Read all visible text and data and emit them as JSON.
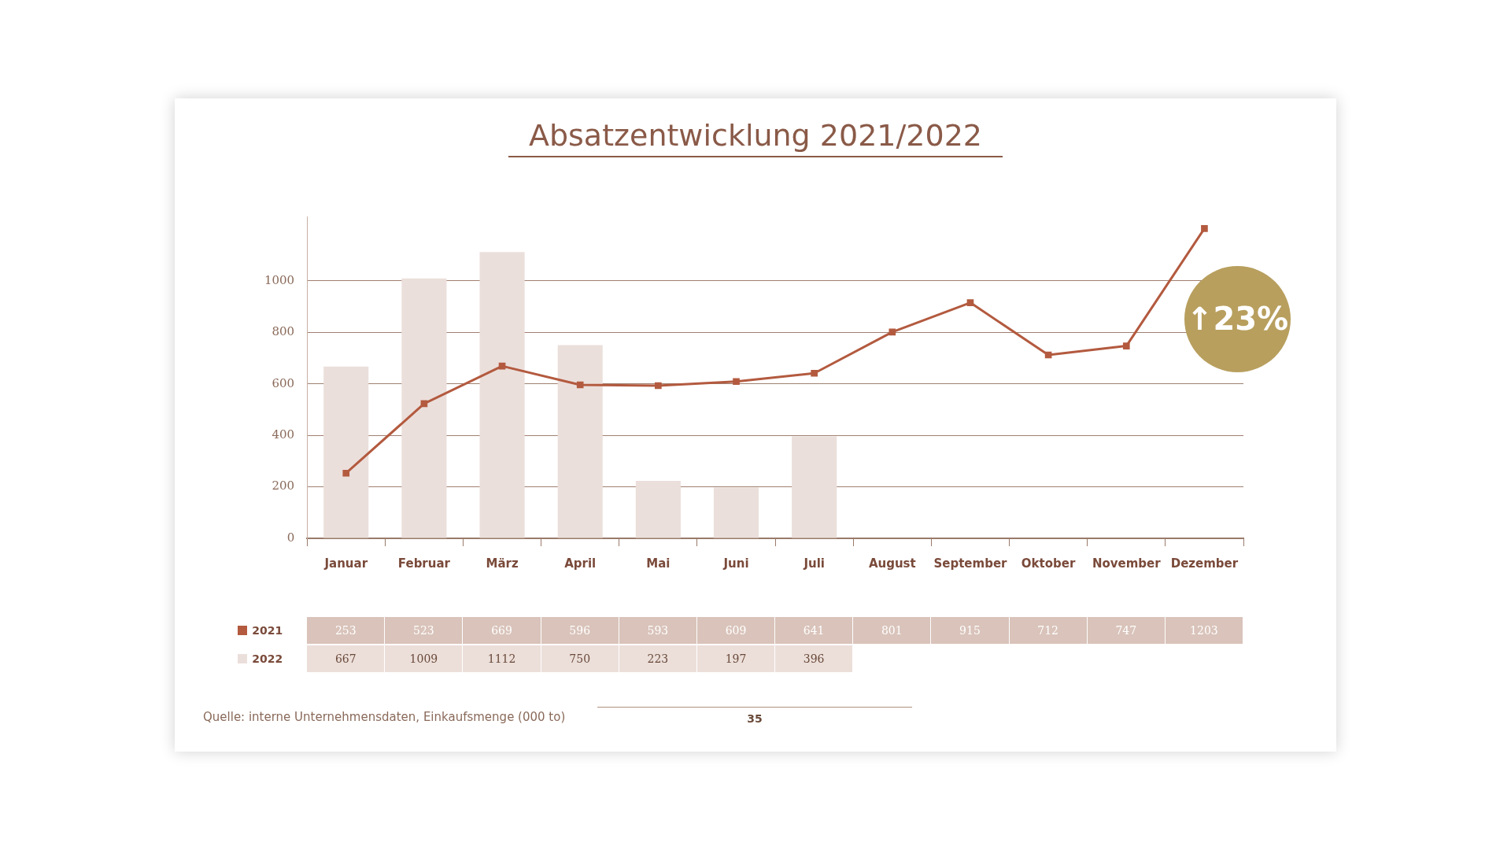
{
  "chart_data": {
    "type": "bar",
    "title": "Absatzentwicklung 2021/2022",
    "categories": [
      "Januar",
      "Februar",
      "März",
      "April",
      "Mai",
      "Juni",
      "Juli",
      "August",
      "September",
      "Oktober",
      "November",
      "Dezember"
    ],
    "series": [
      {
        "name": "2022",
        "color": "#ebdfdb",
        "values": [
          667,
          1009,
          1112,
          750,
          223,
          197,
          396,
          null,
          null,
          null,
          null,
          null
        ]
      },
      {
        "name": "2021",
        "type": "line",
        "color": "#b35a3f",
        "values": [
          253,
          523,
          669,
          596,
          593,
          609,
          641,
          801,
          915,
          712,
          747,
          1203
        ]
      }
    ],
    "ylim": [
      0,
      1250
    ],
    "yticks": [
      0,
      200,
      400,
      600,
      800,
      1000
    ],
    "grid": "y",
    "marker": "square",
    "legend": "bottom left",
    "data_labels": true,
    "annotations": [
      "↑23%",
      "Quelle: interne Unternehmensdaten, Einkaufsmenge (000 to)",
      "35"
    ]
  }
}
